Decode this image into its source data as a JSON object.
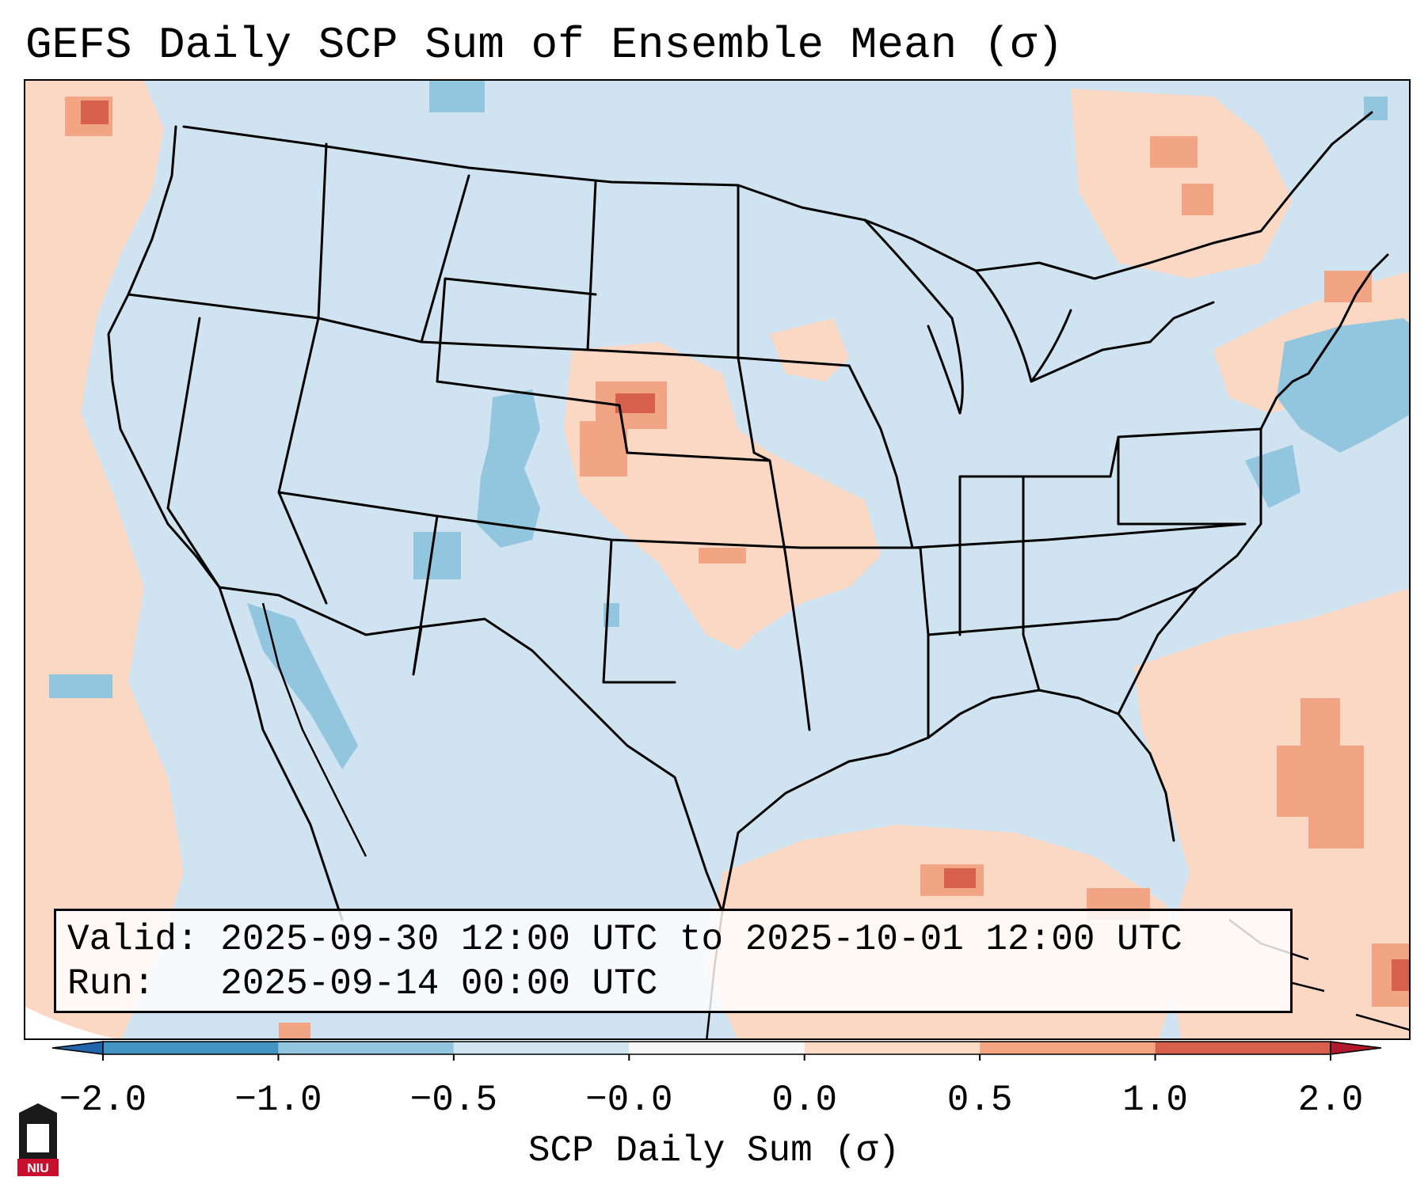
{
  "title": "GEFS Daily SCP Sum of Ensemble Mean (σ)",
  "info": {
    "valid_label": "Valid:",
    "valid_value": "2025-09-30 12:00 UTC to 2025-10-01 12:00 UTC",
    "run_label": "Run:",
    "run_value": "2025-09-14 00:00 UTC"
  },
  "colorbar": {
    "label": "SCP Daily Sum (σ)",
    "ticks": [
      "−2.0",
      "−1.0",
      "−0.5",
      "−0.0",
      "0.0",
      "0.5",
      "1.0",
      "2.0"
    ],
    "bins": [
      {
        "from": "−2.0",
        "to": "−1.0",
        "color": "#4393c3"
      },
      {
        "from": "−1.0",
        "to": "−0.5",
        "color": "#92c5de"
      },
      {
        "from": "−0.5",
        "to": "−0.0",
        "color": "#d1e5f0"
      },
      {
        "from": "−0.0",
        "to": "0.0",
        "color": "#f7f7f7"
      },
      {
        "from": "0.0",
        "to": "0.5",
        "color": "#fddbc7"
      },
      {
        "from": "0.5",
        "to": "1.0",
        "color": "#f4a582"
      },
      {
        "from": "1.0",
        "to": "2.0",
        "color": "#d6604d"
      }
    ],
    "under_color": "#2166ac",
    "over_color": "#b2182b"
  },
  "colors": {
    "neutral_negative": "#cfe3f0",
    "light_positive": "#fbd8c4",
    "mid_positive": "#f2a585",
    "strong_positive": "#d6604d",
    "mid_negative": "#92c5de",
    "boundary": "#000000"
  },
  "logo": {
    "text": "NIU",
    "icon": "university-building-icon"
  }
}
